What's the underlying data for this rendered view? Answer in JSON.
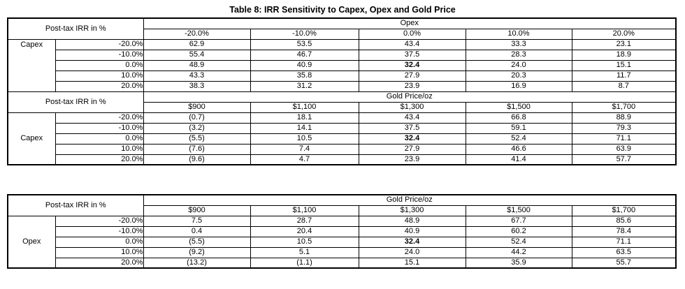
{
  "title": "Table 8: IRR Sensitivity to Capex, Opex and Gold Price",
  "corner_label": "Post-tax IRR in %",
  "colors": {
    "border": "#000000",
    "text": "#000000",
    "background": "#ffffff"
  },
  "tables": [
    {
      "id": "capex-vs-opex",
      "axis_label": "Capex",
      "axis_valign": "top",
      "group_header": "Opex",
      "col_headers": [
        "-20.0%",
        "-10.0%",
        "0.0%",
        "10.0%",
        "20.0%"
      ],
      "rows": [
        {
          "label": "-20.0%",
          "values": [
            "62.9",
            "53.5",
            "43.4",
            "33.3",
            "23.1"
          ]
        },
        {
          "label": "-10.0%",
          "values": [
            "55.4",
            "46.7",
            "37.5",
            "28.3",
            "18.9"
          ]
        },
        {
          "label": "0.0%",
          "values": [
            "48.9",
            "40.9",
            "32.4",
            "24.0",
            "15.1"
          ]
        },
        {
          "label": "10.0%",
          "values": [
            "43.3",
            "35.8",
            "27.9",
            "20.3",
            "11.7"
          ]
        },
        {
          "label": "20.0%",
          "values": [
            "38.3",
            "31.2",
            "23.9",
            "16.9",
            "8.7"
          ]
        }
      ],
      "bold_cell": {
        "row": 2,
        "col": 2
      }
    },
    {
      "id": "capex-vs-gold-price",
      "axis_label": "Capex",
      "axis_valign": "middle",
      "group_header": "Gold Price/oz",
      "col_headers": [
        "$900",
        "$1,100",
        "$1,300",
        "$1,500",
        "$1,700"
      ],
      "rows": [
        {
          "label": "-20.0%",
          "values": [
            "(0.7)",
            "18.1",
            "43.4",
            "66.8",
            "88.9"
          ]
        },
        {
          "label": "-10.0%",
          "values": [
            "(3.2)",
            "14.1",
            "37.5",
            "59.1",
            "79.3"
          ]
        },
        {
          "label": "0.0%",
          "values": [
            "(5.5)",
            "10.5",
            "32.4",
            "52.4",
            "71.1"
          ]
        },
        {
          "label": "10.0%",
          "values": [
            "(7.6)",
            "7.4",
            "27.9",
            "46.6",
            "63.9"
          ]
        },
        {
          "label": "20.0%",
          "values": [
            "(9.6)",
            "4.7",
            "23.9",
            "41.4",
            "57.7"
          ]
        }
      ],
      "bold_cell": {
        "row": 2,
        "col": 2
      }
    },
    {
      "id": "opex-vs-gold-price",
      "axis_label": "Opex",
      "axis_valign": "middle",
      "group_header": "Gold Price/oz",
      "col_headers": [
        "$900",
        "$1,100",
        "$1,300",
        "$1,500",
        "$1,700"
      ],
      "rows": [
        {
          "label": "-20.0%",
          "values": [
            "7.5",
            "28.7",
            "48.9",
            "67.7",
            "85.6"
          ]
        },
        {
          "label": "-10.0%",
          "values": [
            "0.4",
            "20.4",
            "40.9",
            "60.2",
            "78.4"
          ]
        },
        {
          "label": "0.0%",
          "values": [
            "(5.5)",
            "10.5",
            "32.4",
            "52.4",
            "71.1"
          ]
        },
        {
          "label": "10.0%",
          "values": [
            "(9.2)",
            "5.1",
            "24.0",
            "44.2",
            "63.5"
          ]
        },
        {
          "label": "20.0%",
          "values": [
            "(13.2)",
            "(1.1)",
            "15.1",
            "35.9",
            "55.7"
          ]
        }
      ],
      "bold_cell": {
        "row": 2,
        "col": 2
      }
    }
  ]
}
